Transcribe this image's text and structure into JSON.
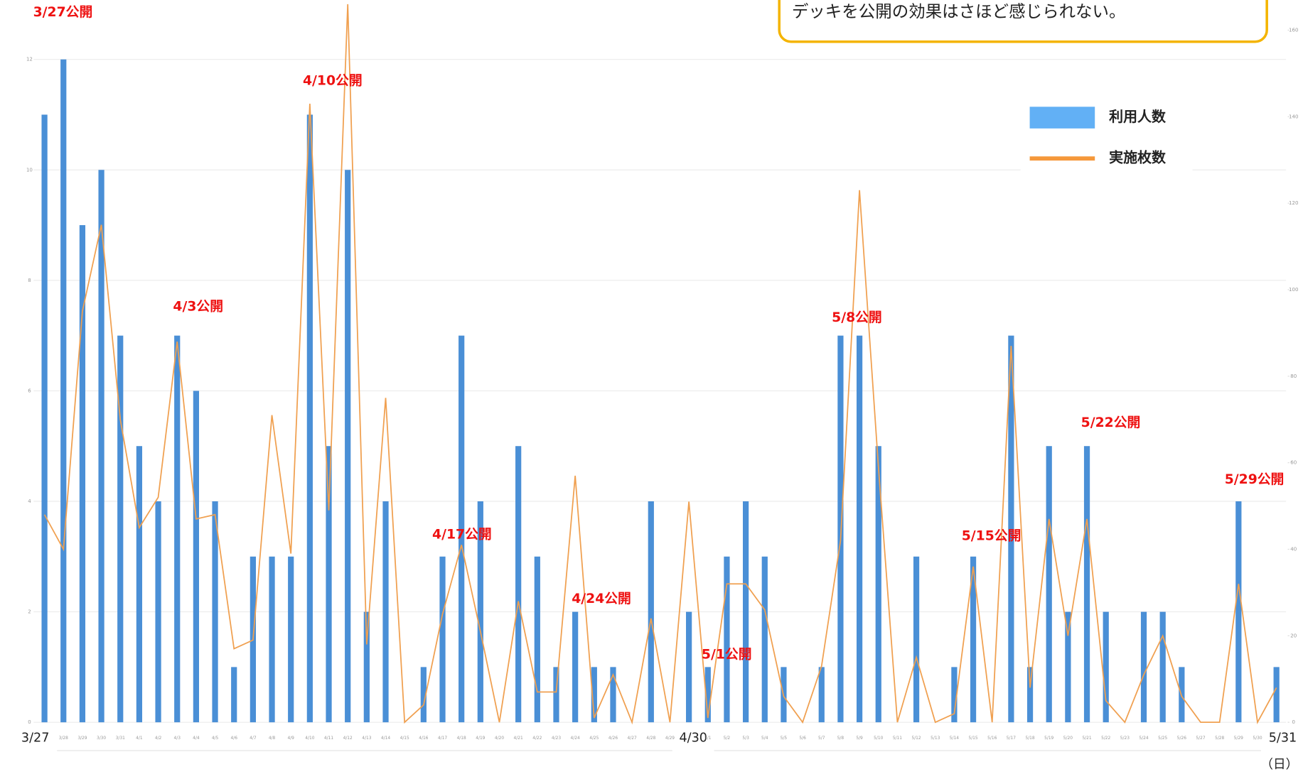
{
  "chart_data": {
    "type": "bar",
    "callout": "デッキを公開の効果はさほど感じられない。",
    "unit_label": "（日）",
    "categories": [
      "3/27",
      "3/28",
      "3/29",
      "3/30",
      "3/31",
      "4/1",
      "4/2",
      "4/3",
      "4/4",
      "4/5",
      "4/6",
      "4/7",
      "4/8",
      "4/9",
      "4/10",
      "4/11",
      "4/12",
      "4/13",
      "4/14",
      "4/15",
      "4/16",
      "4/17",
      "4/18",
      "4/19",
      "4/20",
      "4/21",
      "4/22",
      "4/23",
      "4/24",
      "4/25",
      "4/26",
      "4/27",
      "4/28",
      "4/29",
      "4/30",
      "5/1",
      "5/2",
      "5/3",
      "5/4",
      "5/5",
      "5/6",
      "5/7",
      "5/8",
      "5/9",
      "5/10",
      "5/11",
      "5/12",
      "5/13",
      "5/14",
      "5/15",
      "5/16",
      "5/17",
      "5/18",
      "5/19",
      "5/20",
      "5/21",
      "5/22",
      "5/23",
      "5/24",
      "5/25",
      "5/26",
      "5/27",
      "5/28",
      "5/29",
      "5/30",
      "5/31"
    ],
    "series": [
      {
        "name": "利用人数",
        "color": "#4a8fd6",
        "legend_color": "#62b0f5",
        "type": "bar",
        "axis": "y",
        "values": [
          11,
          12,
          9,
          10,
          7,
          5,
          4,
          7,
          6,
          4,
          1,
          3,
          3,
          3,
          11,
          5,
          10,
          2,
          4,
          0,
          1,
          3,
          7,
          4,
          0,
          5,
          3,
          1,
          2,
          1,
          1,
          0,
          4,
          0,
          2,
          1,
          3,
          4,
          3,
          1,
          0,
          1,
          7,
          7,
          5,
          0,
          3,
          0,
          1,
          3,
          0,
          7,
          1,
          5,
          2,
          5,
          2,
          0,
          2,
          2,
          1,
          0,
          0,
          4,
          0,
          1
        ]
      },
      {
        "name": "実施枚数",
        "color": "#f0a050",
        "legend_color": "#f5983a",
        "type": "line",
        "axis": "y2",
        "values": [
          48,
          40,
          95,
          115,
          70,
          45,
          52,
          88,
          47,
          48,
          17,
          19,
          71,
          39,
          143,
          49,
          166,
          18,
          75,
          0,
          4,
          25,
          41,
          21,
          0,
          28,
          7,
          7,
          57,
          1,
          11,
          0,
          24,
          0,
          51,
          1,
          32,
          32,
          26,
          6,
          0,
          13,
          42,
          123,
          59,
          0,
          15,
          0,
          2,
          36,
          0,
          87,
          8,
          47,
          20,
          47,
          5,
          0,
          11,
          20,
          6,
          0,
          0,
          32,
          0,
          8
        ]
      }
    ],
    "annotations": [
      "3/27公開",
      "4/3公開",
      "4/10公開",
      "4/17公開",
      "4/24公開",
      "5/1公開",
      "5/8公開",
      "5/15公開",
      "5/22公開",
      "5/29公開"
    ],
    "ylim": [
      0,
      13
    ],
    "yticks": [
      0,
      2,
      4,
      6,
      8,
      10,
      12
    ],
    "y2lim": [
      0,
      166
    ],
    "y2ticks": [
      0,
      20,
      40,
      60,
      80,
      100,
      120,
      140,
      160
    ],
    "grid": true
  }
}
